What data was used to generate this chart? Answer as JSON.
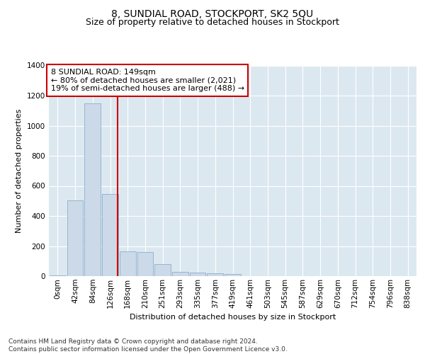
{
  "title": "8, SUNDIAL ROAD, STOCKPORT, SK2 5QU",
  "subtitle": "Size of property relative to detached houses in Stockport",
  "xlabel": "Distribution of detached houses by size in Stockport",
  "ylabel": "Number of detached properties",
  "bar_labels": [
    "0sqm",
    "42sqm",
    "84sqm",
    "126sqm",
    "168sqm",
    "210sqm",
    "251sqm",
    "293sqm",
    "335sqm",
    "377sqm",
    "419sqm",
    "461sqm",
    "503sqm",
    "545sqm",
    "587sqm",
    "629sqm",
    "670sqm",
    "712sqm",
    "754sqm",
    "796sqm",
    "838sqm"
  ],
  "bar_values": [
    5,
    505,
    1150,
    545,
    165,
    160,
    80,
    28,
    23,
    18,
    13,
    0,
    0,
    0,
    0,
    0,
    0,
    0,
    0,
    0,
    0
  ],
  "bar_color": "#ccd9e8",
  "bar_edge_color": "#8ab0cc",
  "vline_x": 3.42,
  "vline_color": "#cc0000",
  "annotation_text": "8 SUNDIAL ROAD: 149sqm\n← 80% of detached houses are smaller (2,021)\n19% of semi-detached houses are larger (488) →",
  "annotation_box_color": "#ffffff",
  "annotation_box_edge_color": "#cc0000",
  "ylim": [
    0,
    1400
  ],
  "yticks": [
    0,
    200,
    400,
    600,
    800,
    1000,
    1200,
    1400
  ],
  "plot_bg_color": "#dce8f0",
  "footer_text": "Contains HM Land Registry data © Crown copyright and database right 2024.\nContains public sector information licensed under the Open Government Licence v3.0.",
  "title_fontsize": 10,
  "subtitle_fontsize": 9,
  "axis_label_fontsize": 8,
  "tick_fontsize": 7.5,
  "annotation_fontsize": 8,
  "footer_fontsize": 6.5
}
